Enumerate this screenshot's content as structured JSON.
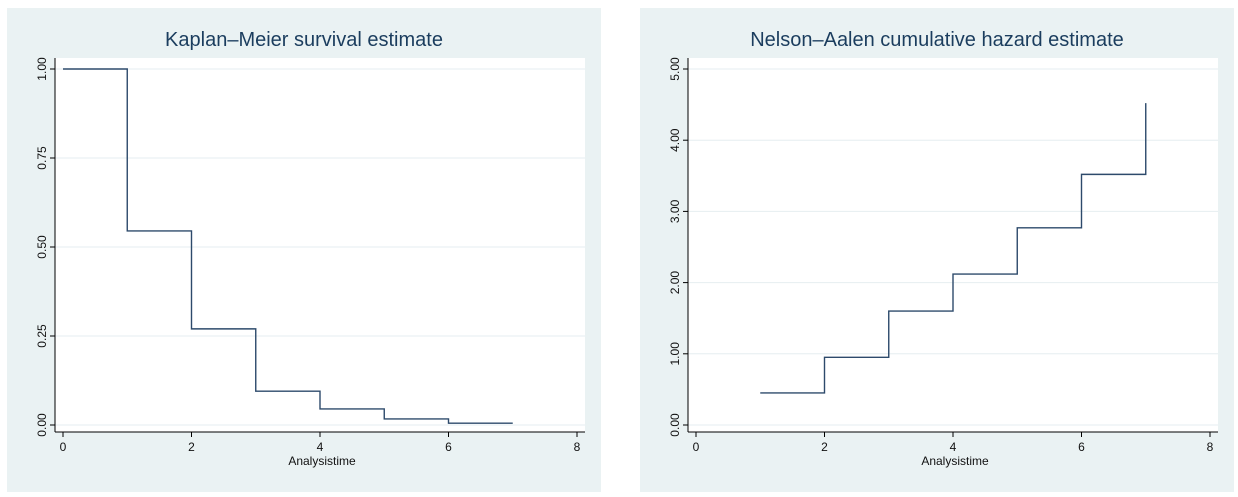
{
  "chart_data": [
    {
      "type": "line",
      "step": true,
      "title": "Kaplan–Meier survival estimate",
      "xlabel": "Analysistime",
      "ylabel": "",
      "xlim": [
        0,
        8
      ],
      "ylim": [
        0,
        1
      ],
      "xticks": [
        0,
        2,
        4,
        6,
        8
      ],
      "xtick_labels": [
        "0",
        "2",
        "4",
        "6",
        "8"
      ],
      "yticks": [
        0,
        0.25,
        0.5,
        0.75,
        1
      ],
      "ytick_labels": [
        "0.00",
        "0.25",
        "0.50",
        "0.75",
        "1.00"
      ],
      "grid": true,
      "line_color": "#2d4a6b",
      "series": [
        {
          "x": [
            0,
            1,
            2,
            3,
            4,
            5,
            6,
            7
          ],
          "y": [
            1.0,
            0.545,
            0.27,
            0.095,
            0.045,
            0.017,
            0.005,
            0.005
          ]
        }
      ]
    },
    {
      "type": "line",
      "step": true,
      "title": "Nelson–Aalen cumulative hazard estimate",
      "xlabel": "Analysistime",
      "ylabel": "",
      "xlim": [
        0,
        8
      ],
      "ylim": [
        0,
        5
      ],
      "xticks": [
        0,
        2,
        4,
        6,
        8
      ],
      "xtick_labels": [
        "0",
        "2",
        "4",
        "6",
        "8"
      ],
      "yticks": [
        0,
        1,
        2,
        3,
        4,
        5
      ],
      "ytick_labels": [
        "0.00",
        "1.00",
        "2.00",
        "3.00",
        "4.00",
        "5.00"
      ],
      "grid": true,
      "line_color": "#2d4a6b",
      "series": [
        {
          "x": [
            1,
            2,
            3,
            4,
            5,
            6,
            7
          ],
          "y": [
            0.45,
            0.95,
            1.6,
            2.12,
            2.77,
            3.52,
            4.52
          ]
        }
      ]
    }
  ]
}
